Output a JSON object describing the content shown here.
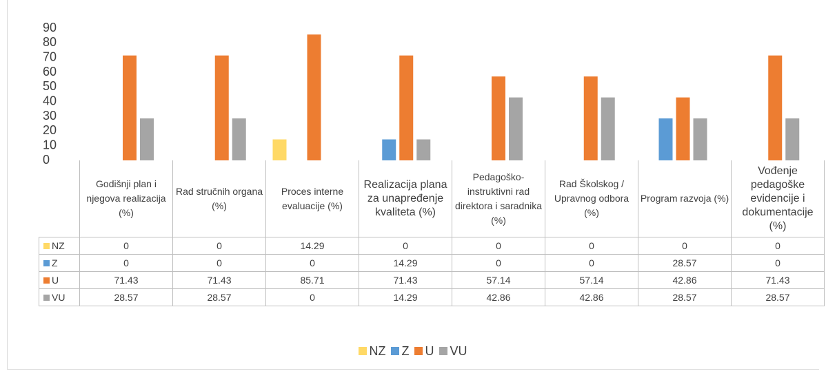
{
  "chart_data": {
    "type": "bar",
    "categories": [
      "Godišnji plan i njegova realizacija (%)",
      "Rad stručnih organa (%)",
      "Proces interne evaluacije (%)",
      "Realizacija plana za unapređenje kvaliteta (%)",
      "Pedagoško-instruktivni rad direktora i saradnika (%)",
      "Rad Školskog / Upravnog odbora (%)",
      "Program razvoja (%)",
      "Vođenje pedagoške evidencije i dokumentacije (%)"
    ],
    "series": [
      {
        "name": "NZ",
        "color": "#ffd966",
        "values": [
          0,
          0,
          14.29,
          0,
          0,
          0,
          0,
          0
        ]
      },
      {
        "name": "Z",
        "color": "#5b9bd5",
        "values": [
          0,
          0,
          0,
          14.29,
          0,
          0,
          28.57,
          0
        ]
      },
      {
        "name": "U",
        "color": "#ed7d31",
        "values": [
          71.43,
          71.43,
          85.71,
          71.43,
          57.14,
          57.14,
          42.86,
          71.43
        ]
      },
      {
        "name": "VU",
        "color": "#a5a5a5",
        "values": [
          28.57,
          28.57,
          0,
          14.29,
          42.86,
          42.86,
          28.57,
          28.57
        ]
      }
    ],
    "ylim": [
      0,
      90
    ],
    "yticks": [
      0,
      10,
      20,
      30,
      40,
      50,
      60,
      70,
      80,
      90
    ],
    "grid": false,
    "legend": "bottom"
  }
}
